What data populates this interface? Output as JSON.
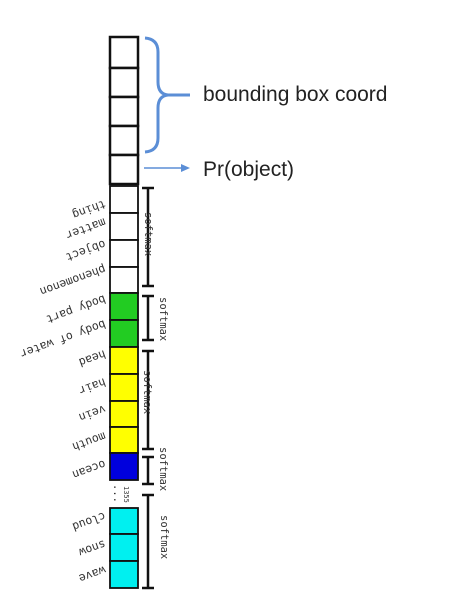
{
  "annotations": {
    "bbox_label": "bounding box coord",
    "objectness_label": "Pr(object)"
  },
  "softmax_label": "softmax",
  "ellipsis_count": "1355",
  "ellipsis_dots": "...",
  "labels": {
    "thing": "thing",
    "matter": "matter",
    "object": "object",
    "phenomenon": "phenomenon",
    "body_part": "body part",
    "body_of_water": "body of water",
    "head": "head",
    "hair": "hair",
    "vein": "vein",
    "mouth": "mouth",
    "ocean": "ocean",
    "cloud": "cloud",
    "snow": "snow",
    "wave": "wave"
  },
  "colors": {
    "white": "#ffffff",
    "green": "#22cc22",
    "yellow": "#ffff00",
    "blue": "#0000dd",
    "cyan": "#00f0f0",
    "bracket_blue": "#5b8ed6",
    "arrow_blue": "#5b8ed6"
  }
}
